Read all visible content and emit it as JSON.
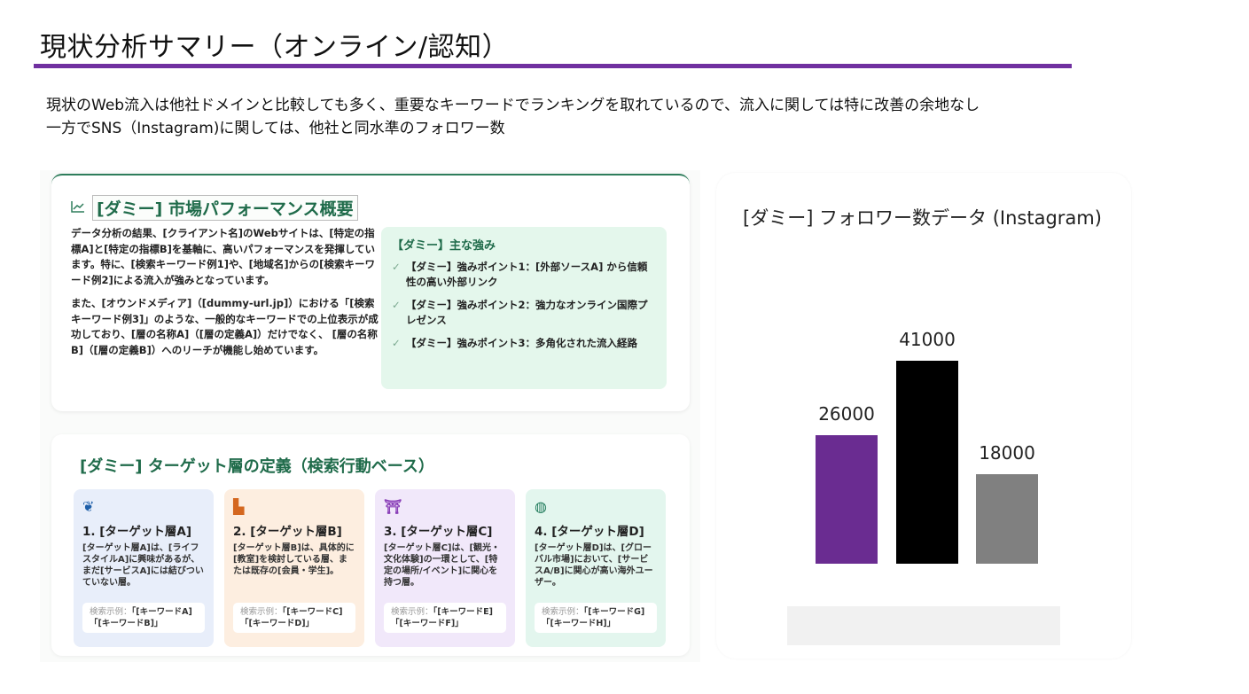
{
  "slide": {
    "title": "現状分析サマリー（オンライン/認知）",
    "accent_color": "#7030a0",
    "summary_lines": [
      "現状のWeb流入は他社ドメインと比較しても多く、重要なキーワードでランキングを取れているので、流入に関しては特に改善の余地なし",
      "一方でSNS（Instagram)に関しては、他社と同水準のフォロワー数"
    ]
  },
  "performance_card": {
    "icon": "chart-line-icon",
    "title": "[ダミー] 市場パフォーマンス概要",
    "paragraphs": [
      "データ分析の結果、[クライアント名]のWebサイトは、[特定の指標A]と[特定の指標B]を基軸に、高いパフォーマンスを発揮しています。特に、[検索キーワード例1]や、[地域名]からの[検索キーワード例2]による流入が強みとなっています。",
      "また、[オウンドメディア]（[dummy-url.jp]）における「[検索キーワード例3]」のような、一般的なキーワードでの上位表示が成功しており、[層の名称A]（[層の定義A]）だけでなく、 [層の名称B]（[層の定義B]）へのリーチが機能し始めています。"
    ],
    "strengths": {
      "title": "【ダミー】主な強み",
      "items": [
        "【ダミー】強みポイント1：[外部ソースA] から信頼性の高い外部リンク",
        "【ダミー】強みポイント2：強力なオンライン国際プレゼンス",
        "【ダミー】強みポイント3：多角化された流入経路"
      ]
    }
  },
  "target_card": {
    "title": "[ダミー] ターゲット層の定義（検索行動ベース）",
    "example_label": "検索示例：",
    "targets": [
      {
        "icon": "sprout-icon",
        "glyph": "❦",
        "color": "#1e5fa8",
        "bg": "#e8eefa",
        "name": "1. [ターゲット層A]",
        "desc": "[ターゲット層A]は、[ライフスタイルA]に興味があるが、まだ[サービスA]には結びついていない層。",
        "examples": "「[キーワードA]「[キーワードB]」"
      },
      {
        "icon": "school-icon",
        "glyph": "▙",
        "color": "#d4671f",
        "bg": "#fdeee0",
        "name": "2. [ターゲット層B]",
        "desc": "[ターゲット層B]は、具体的に[教室]を検討している層、または既存の[会員・学生]。",
        "examples": "「[キーワードC]「[キーワードD]」"
      },
      {
        "icon": "torii-icon",
        "glyph": "⛩",
        "color": "#8a3fb8",
        "bg": "#f1e8fa",
        "name": "3. [ターゲット層C]",
        "desc": "[ターゲット層C]は、[観光・文化体験]の一環として、[特定の場所/イベント]に関心を持つ層。",
        "examples": "「[キーワードE]「[キーワードF]」"
      },
      {
        "icon": "globe-icon",
        "glyph": "◍",
        "color": "#1f7a5a",
        "bg": "#e3f6ee",
        "name": "4. [ターゲット層D]",
        "desc": "[ターゲット層D]は、[グローバル市場]において、[サービスA/B]に関心が高い海外ユーザー。",
        "examples": "「[キーワードG]「[キーワードH]」"
      }
    ]
  },
  "chart_data": {
    "type": "bar",
    "title": "[ダミー] フォロワー数データ (Instagram)",
    "categories": [
      "",
      "",
      ""
    ],
    "values": [
      26000,
      41000,
      18000
    ],
    "colors": [
      "#6a2c91",
      "#000000",
      "#808080"
    ],
    "data_labels": [
      "26000",
      "41000",
      "18000"
    ],
    "xlabel": "",
    "ylabel": "",
    "grid": false,
    "legend": "hidden (placeholder box below chart)"
  }
}
